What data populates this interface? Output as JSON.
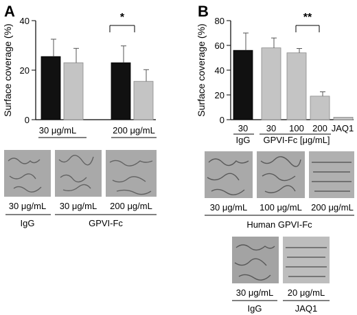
{
  "panels": {
    "a_letter": "A",
    "b_letter": "B"
  },
  "colors": {
    "igg_bar": "#111111",
    "gpvi_bar": "#c4c4c4",
    "micrograph_bg": "#a9a9a9"
  },
  "chart_data": [
    {
      "type": "bar",
      "panel": "A",
      "ylabel": "Surface coverage (%)",
      "ylim": [
        0,
        40
      ],
      "yticks": [
        "0",
        "20",
        "40"
      ],
      "x_labels": [
        "30 μg/mL",
        "200 μg/mL"
      ],
      "series": [
        {
          "group": "30 μg/mL",
          "values": [
            25.5,
            23.0
          ],
          "errors": [
            7.0,
            5.8
          ]
        },
        {
          "group": "200 μg/mL",
          "values": [
            23.0,
            15.5
          ],
          "errors": [
            6.8,
            4.7
          ]
        }
      ],
      "bar_colors": [
        "igg",
        "gpvi",
        "igg",
        "gpvi"
      ],
      "significance": "*"
    },
    {
      "type": "bar",
      "panel": "B",
      "ylabel": "Surface coverage (%)",
      "ylim": [
        0,
        80
      ],
      "yticks": [
        "0",
        "20",
        "40",
        "60",
        "80"
      ],
      "categories": [
        "30",
        "30",
        "100",
        "200",
        "JAQ1"
      ],
      "values": [
        56,
        58,
        54,
        19,
        2
      ],
      "errors": [
        14,
        8,
        3.5,
        3.5,
        0
      ],
      "bar_colors": [
        "igg",
        "gpvi",
        "gpvi",
        "gpvi",
        "gpvi"
      ],
      "group_labels": [
        "IgG",
        "GPVI-Fc [μg/mL]"
      ],
      "significance": "**"
    }
  ],
  "micrographs": {
    "a_caption": [
      "30 μg/mL",
      "30 μg/mL",
      "200 μg/mL"
    ],
    "a_groups": [
      "IgG",
      "GPVI-Fc"
    ],
    "b_caption": [
      "30 μg/mL",
      "100 μg/mL",
      "200 μg/mL"
    ],
    "b_group": "Human GPVI-Fc",
    "b2_caption": [
      "30 μg/mL",
      "20 μg/mL"
    ],
    "b2_groups": [
      "IgG",
      "JAQ1"
    ]
  }
}
